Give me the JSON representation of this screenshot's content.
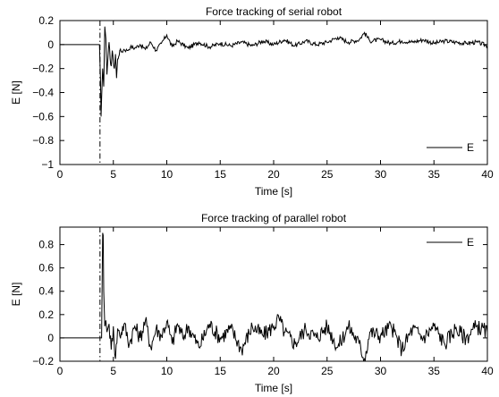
{
  "chart_data": [
    {
      "type": "line",
      "title": "Force tracking of serial robot",
      "xlabel": "Time [s]",
      "ylabel": "E [N]",
      "xlim": [
        0,
        40
      ],
      "ylim": [
        -1,
        0.2
      ],
      "xticks": [
        0,
        5,
        10,
        15,
        20,
        25,
        30,
        35,
        40
      ],
      "yticks": [
        -1,
        -0.8,
        -0.6,
        -0.4,
        -0.2,
        0,
        0.2
      ],
      "xtick_labels": [
        "0",
        "5",
        "10",
        "15",
        "20",
        "25",
        "30",
        "35",
        "40"
      ],
      "ytick_labels": [
        "−1",
        "−0.8",
        "−0.6",
        "−0.4",
        "−0.2",
        "0",
        "0.2"
      ],
      "grid": false,
      "legend_position": "bottom-right",
      "event_line_x": 3.75,
      "series": [
        {
          "name": "E",
          "color": "#000000",
          "x": [
            0,
            3.6,
            3.7,
            3.8,
            3.85,
            3.9,
            4.0,
            4.1,
            4.2,
            4.3,
            4.4,
            4.5,
            4.6,
            4.7,
            4.8,
            4.9,
            5.0,
            5.1,
            5.2,
            5.3,
            5.4,
            5.5,
            5.6,
            5.8,
            6.0,
            6.3,
            6.6,
            7.0,
            7.5,
            8.0,
            8.5,
            9.0,
            9.5,
            10.0,
            10.5,
            11.0,
            12.0,
            13.0,
            14.0,
            15.0,
            16.0,
            17.0,
            18.0,
            19.0,
            20.0,
            21.0,
            22.0,
            23.0,
            24.0,
            25.0,
            26.0,
            27.0,
            28.0,
            28.5,
            29.0,
            30.0,
            31.0,
            32.0,
            33.0,
            34.0,
            35.0,
            36.0,
            37.0,
            38.0,
            39.0,
            40.0
          ],
          "y": [
            0,
            0,
            0,
            -0.3,
            -0.6,
            -0.45,
            -0.2,
            -0.35,
            0.15,
            0.05,
            -0.25,
            -0.1,
            0.02,
            -0.12,
            -0.18,
            -0.05,
            -0.15,
            -0.2,
            -0.08,
            -0.28,
            -0.12,
            -0.1,
            -0.05,
            -0.06,
            -0.04,
            -0.05,
            -0.02,
            -0.03,
            0.0,
            -0.04,
            0.02,
            -0.05,
            0.01,
            0.08,
            -0.02,
            0.03,
            -0.03,
            0.02,
            -0.02,
            0.01,
            -0.01,
            0.02,
            -0.01,
            0.03,
            0.0,
            0.04,
            -0.01,
            0.03,
            0.0,
            0.02,
            0.06,
            0.02,
            0.04,
            0.1,
            0.03,
            0.04,
            0.01,
            0.03,
            0.02,
            0.04,
            0.01,
            0.03,
            0.02,
            0.01,
            0.02,
            -0.01
          ]
        }
      ]
    },
    {
      "type": "line",
      "title": "Force tracking of parallel robot",
      "xlabel": "Time [s]",
      "ylabel": "E [N]",
      "xlim": [
        0,
        40
      ],
      "ylim": [
        -0.2,
        0.95
      ],
      "xticks": [
        0,
        5,
        10,
        15,
        20,
        25,
        30,
        35,
        40
      ],
      "yticks": [
        -0.2,
        0,
        0.2,
        0.4,
        0.6,
        0.8
      ],
      "xtick_labels": [
        "0",
        "5",
        "10",
        "15",
        "20",
        "25",
        "30",
        "35",
        "40"
      ],
      "ytick_labels": [
        "−0.2",
        "0",
        "0.2",
        "0.4",
        "0.6",
        "0.8"
      ],
      "grid": false,
      "legend_position": "top-right",
      "event_line_x": 3.75,
      "series": [
        {
          "name": "E",
          "color": "#000000",
          "x": [
            0,
            3.9,
            4.0,
            4.05,
            4.1,
            4.2,
            4.3,
            4.4,
            4.6,
            4.8,
            5.0,
            5.2,
            5.4,
            5.6,
            6.0,
            6.5,
            7.0,
            7.5,
            8.0,
            8.5,
            9.0,
            9.5,
            10.0,
            10.5,
            11.0,
            11.5,
            12.0,
            13.0,
            14.0,
            15.0,
            16.0,
            17.0,
            18.0,
            19.0,
            20.0,
            20.5,
            21.0,
            22.0,
            23.0,
            24.0,
            25.0,
            26.0,
            27.0,
            28.0,
            28.5,
            29.0,
            30.0,
            31.0,
            32.0,
            33.0,
            34.0,
            35.0,
            36.0,
            37.0,
            38.0,
            39.0,
            40.0
          ],
          "y": [
            0,
            0,
            0.9,
            0.88,
            0.4,
            0.1,
            0.15,
            0.05,
            0.12,
            -0.1,
            0.1,
            -0.18,
            0.08,
            0.02,
            0.12,
            -0.05,
            0.1,
            0.0,
            0.15,
            -0.08,
            0.08,
            0.02,
            0.14,
            -0.05,
            0.12,
            0.0,
            0.1,
            -0.08,
            0.12,
            0.0,
            0.08,
            -0.1,
            0.1,
            0.02,
            0.1,
            0.17,
            0.05,
            -0.05,
            0.08,
            0.0,
            0.1,
            -0.08,
            0.1,
            -0.05,
            -0.18,
            0.05,
            0.02,
            0.1,
            -0.1,
            0.08,
            0.0,
            0.1,
            -0.05,
            0.08,
            0.0,
            0.1,
            0.05
          ]
        }
      ]
    }
  ]
}
